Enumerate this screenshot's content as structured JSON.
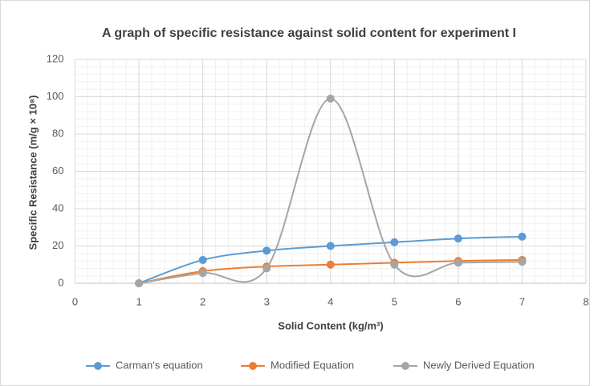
{
  "chart_data": {
    "type": "line",
    "title": "A graph of specific resistance against solid content for experiment I",
    "x_label": "Solid Content (kg/m³)",
    "y_label": "Specific Resistance (m/g × 10⁸)",
    "x": [
      1,
      2,
      3,
      4,
      5,
      6,
      7
    ],
    "series": [
      {
        "name": "Carman's equation",
        "color": "#5b9bd5",
        "values": [
          0,
          12.5,
          17.5,
          20,
          22,
          24,
          25
        ]
      },
      {
        "name": "Modified Equation",
        "color": "#ed7d31",
        "values": [
          0,
          6.5,
          9,
          10,
          11,
          12,
          12.5
        ]
      },
      {
        "name": "Newly Derived Equation",
        "color": "#a5a5a5",
        "values": [
          0,
          5.5,
          8,
          99,
          10,
          11,
          11.5
        ]
      }
    ],
    "xlim": [
      0,
      8
    ],
    "xticks": [
      0,
      1,
      2,
      3,
      4,
      5,
      6,
      7,
      8
    ],
    "ylim": [
      0,
      120
    ],
    "yticks": [
      0,
      20,
      40,
      60,
      80,
      100,
      120
    ],
    "grid": true,
    "smooth": true,
    "legend": "bottom"
  }
}
